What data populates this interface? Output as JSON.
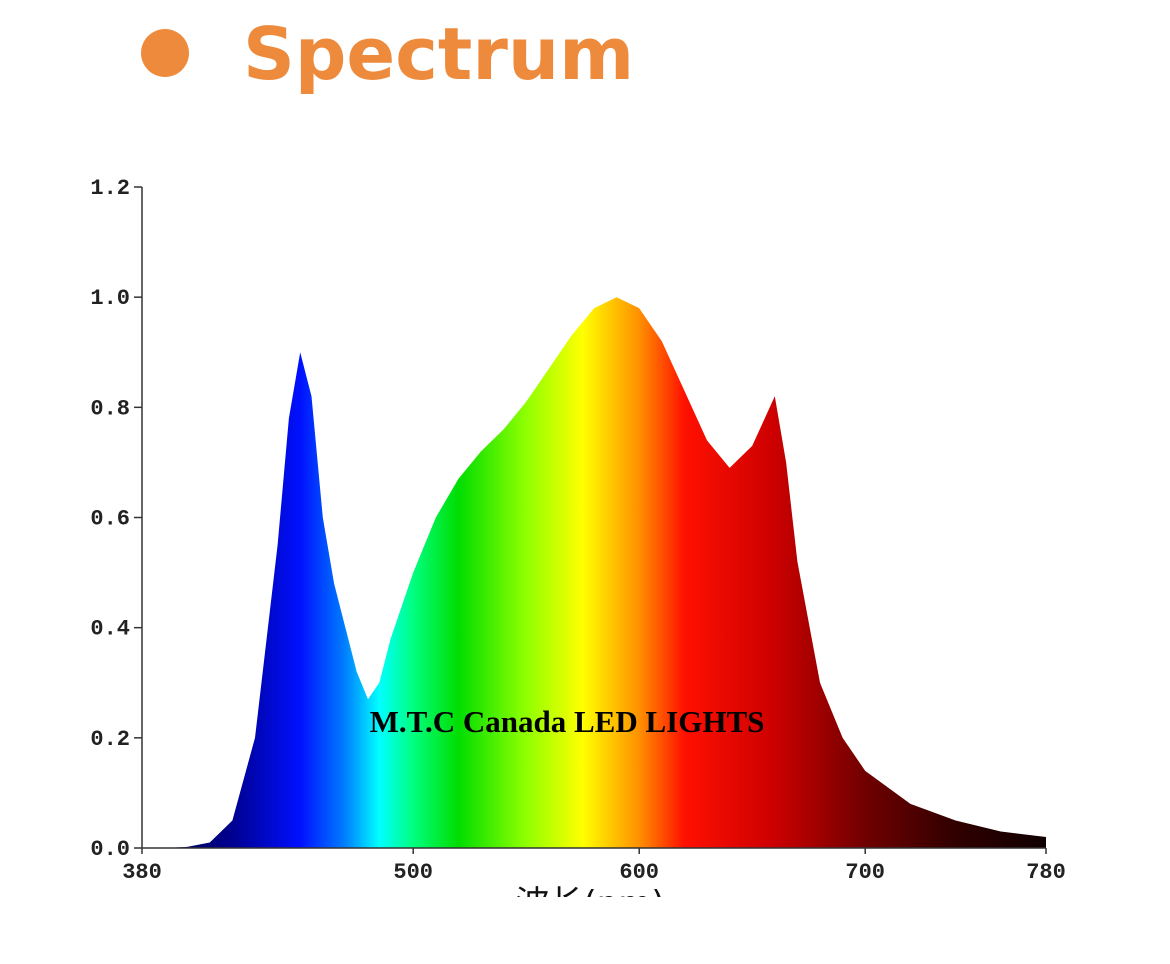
{
  "chart_data": {
    "type": "area",
    "title": "Spectrum",
    "annotation": "M.T.C Canada LED LIGHTS",
    "xlabel": "波长(nm)",
    "title_color": "#ee8a3c",
    "x": [
      380,
      390,
      400,
      410,
      420,
      430,
      440,
      445,
      450,
      455,
      460,
      465,
      470,
      475,
      480,
      485,
      490,
      500,
      510,
      520,
      530,
      540,
      550,
      560,
      570,
      580,
      590,
      600,
      610,
      620,
      630,
      640,
      650,
      660,
      665,
      670,
      680,
      690,
      700,
      720,
      740,
      760,
      780
    ],
    "values": [
      0.0,
      0.0,
      0.002,
      0.01,
      0.05,
      0.2,
      0.55,
      0.78,
      0.9,
      0.82,
      0.6,
      0.48,
      0.4,
      0.32,
      0.27,
      0.3,
      0.38,
      0.5,
      0.6,
      0.67,
      0.72,
      0.76,
      0.81,
      0.87,
      0.93,
      0.98,
      1.0,
      0.98,
      0.92,
      0.83,
      0.74,
      0.69,
      0.73,
      0.82,
      0.7,
      0.52,
      0.3,
      0.2,
      0.14,
      0.08,
      0.05,
      0.03,
      0.02
    ],
    "fill_gradient": [
      {
        "x": 380,
        "color": "#000040"
      },
      {
        "x": 420,
        "color": "#000090"
      },
      {
        "x": 450,
        "color": "#0010ff"
      },
      {
        "x": 470,
        "color": "#0080ff"
      },
      {
        "x": 485,
        "color": "#00ffff"
      },
      {
        "x": 500,
        "color": "#00ff80"
      },
      {
        "x": 520,
        "color": "#00dd00"
      },
      {
        "x": 550,
        "color": "#90ff00"
      },
      {
        "x": 575,
        "color": "#ffff00"
      },
      {
        "x": 600,
        "color": "#ff9000"
      },
      {
        "x": 620,
        "color": "#ff1000"
      },
      {
        "x": 660,
        "color": "#cc0000"
      },
      {
        "x": 700,
        "color": "#700000"
      },
      {
        "x": 740,
        "color": "#300000"
      },
      {
        "x": 780,
        "color": "#100000"
      }
    ],
    "xlim": [
      380,
      780
    ],
    "xticks": [
      380,
      500,
      600,
      700,
      780
    ],
    "ylim": [
      0,
      1.2
    ],
    "yticks": [
      {
        "value": 0,
        "label": "0.0"
      },
      0.2,
      0.4,
      0.6,
      0.8,
      {
        "value": 1,
        "label": "1.0"
      },
      1.2
    ]
  }
}
